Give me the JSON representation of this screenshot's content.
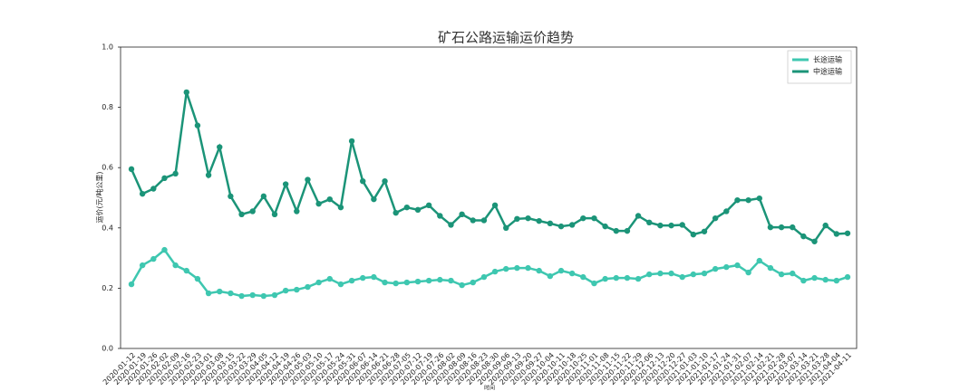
{
  "chart_data": {
    "type": "line",
    "title": "矿石公路运输运价趋势",
    "x_label": "时间",
    "y_label": "运价(元/吨公里)",
    "categories": [
      "2020-01-12",
      "2020-01-19",
      "2020-01-26",
      "2020-02-02",
      "2020-02-09",
      "2020-02-16",
      "2020-02-23",
      "2020-03-01",
      "2020-03-08",
      "2020-03-15",
      "2020-03-22",
      "2020-03-29",
      "2020-04-05",
      "2020-04-12",
      "2020-04-19",
      "2020-04-26",
      "2020-05-03",
      "2020-05-10",
      "2020-05-17",
      "2020-05-24",
      "2020-05-31",
      "2020-06-07",
      "2020-06-14",
      "2020-06-21",
      "2020-06-28",
      "2020-07-05",
      "2020-07-12",
      "2020-07-19",
      "2020-07-26",
      "2020-08-02",
      "2020-08-09",
      "2020-08-16",
      "2020-08-23",
      "2020-08-30",
      "2020-09-06",
      "2020-09-13",
      "2020-09-20",
      "2020-09-27",
      "2020-10-04",
      "2020-10-11",
      "2020-10-18",
      "2020-10-25",
      "2020-11-01",
      "2020-11-08",
      "2020-11-15",
      "2020-11-22",
      "2020-11-29",
      "2020-12-06",
      "2020-12-13",
      "2020-12-20",
      "2020-12-27",
      "2021-01-03",
      "2021-01-10",
      "2021-01-17",
      "2021-01-24",
      "2021-01-31",
      "2021-02-07",
      "2021-02-14",
      "2021-02-21",
      "2021-02-28",
      "2021-03-07",
      "2021-03-14",
      "2021-03-21",
      "2021-03-28",
      "2021-04-04",
      "2021-04-11"
    ],
    "series": [
      {
        "name": "长途运输",
        "color": "#3ec7b0",
        "values": [
          0.213,
          0.276,
          0.297,
          0.327,
          0.276,
          0.258,
          0.231,
          0.183,
          0.189,
          0.183,
          0.174,
          0.177,
          0.174,
          0.177,
          0.192,
          0.195,
          0.204,
          0.219,
          0.231,
          0.213,
          0.225,
          0.234,
          0.237,
          0.219,
          0.216,
          0.219,
          0.222,
          0.225,
          0.228,
          0.225,
          0.21,
          0.219,
          0.237,
          0.255,
          0.264,
          0.267,
          0.267,
          0.258,
          0.24,
          0.258,
          0.249,
          0.237,
          0.216,
          0.231,
          0.234,
          0.234,
          0.231,
          0.246,
          0.249,
          0.249,
          0.237,
          0.246,
          0.249,
          0.264,
          0.27,
          0.276,
          0.252,
          0.291,
          0.267,
          0.246,
          0.249,
          0.225,
          0.234,
          0.228,
          0.225,
          0.237
        ]
      },
      {
        "name": "中途运输",
        "color": "#1b9478",
        "values": [
          0.595,
          0.513,
          0.53,
          0.565,
          0.58,
          0.85,
          0.74,
          0.575,
          0.668,
          0.505,
          0.445,
          0.455,
          0.505,
          0.445,
          0.545,
          0.455,
          0.56,
          0.48,
          0.495,
          0.468,
          0.688,
          0.555,
          0.495,
          0.555,
          0.45,
          0.468,
          0.46,
          0.475,
          0.44,
          0.41,
          0.445,
          0.425,
          0.425,
          0.475,
          0.4,
          0.43,
          0.432,
          0.423,
          0.415,
          0.405,
          0.41,
          0.432,
          0.432,
          0.405,
          0.39,
          0.39,
          0.44,
          0.418,
          0.408,
          0.408,
          0.41,
          0.378,
          0.388,
          0.432,
          0.455,
          0.492,
          0.492,
          0.498,
          0.402,
          0.402,
          0.402,
          0.372,
          0.355,
          0.408,
          0.38,
          0.382
        ]
      }
    ],
    "ylim": [
      0,
      1
    ],
    "yticks": [
      {
        "value": 0,
        "label": "0.0"
      },
      0.2,
      0.4,
      0.6,
      0.8,
      {
        "value": 1,
        "label": "1.0"
      }
    ],
    "legend": "upper right"
  }
}
